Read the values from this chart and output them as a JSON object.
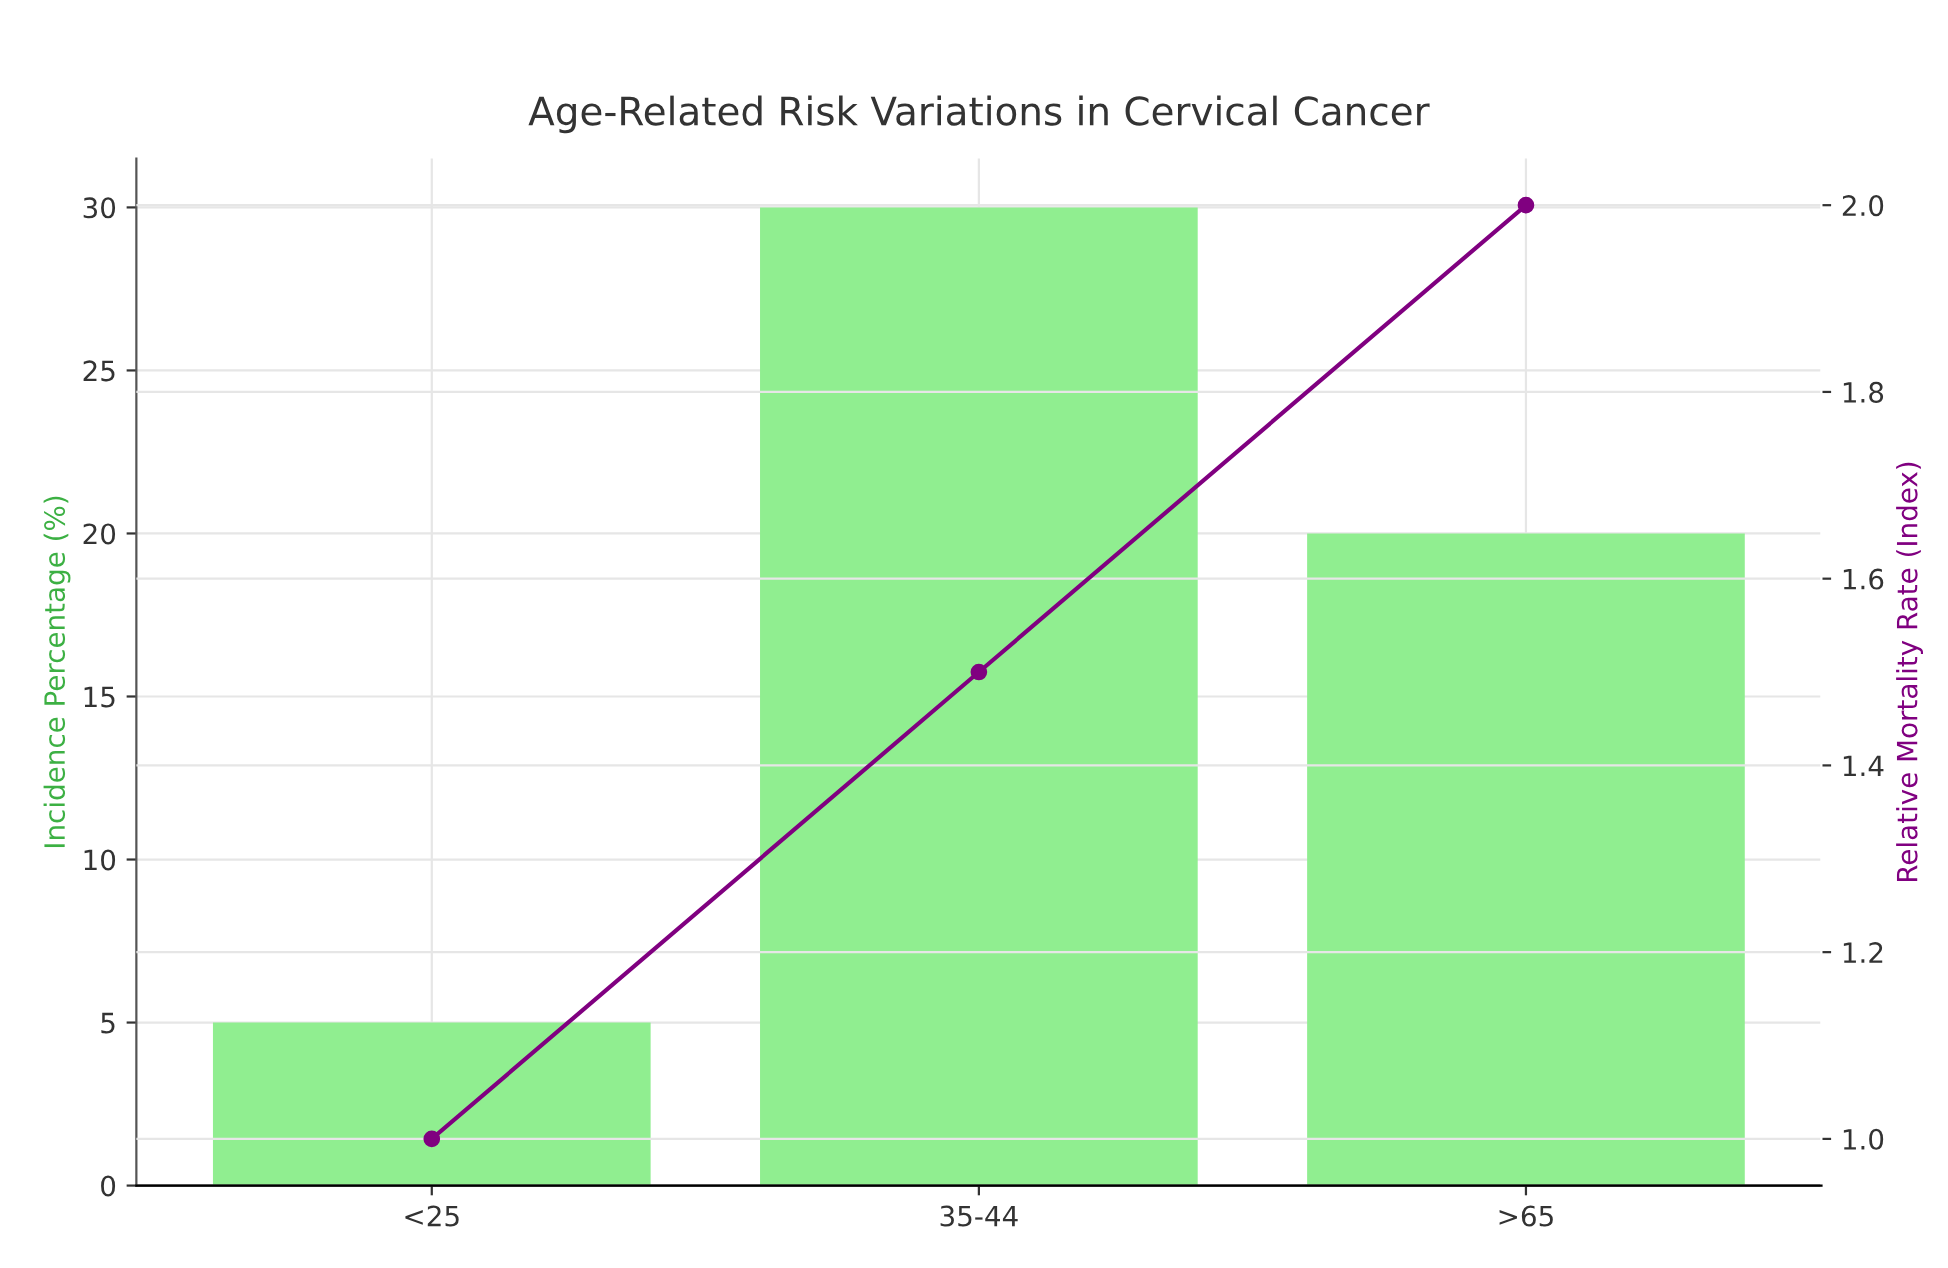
{
  "chart_data": {
    "type": "bar",
    "title": "Age-Related Risk Variations in Cervical Cancer",
    "categories": [
      "<25",
      "35-44",
      ">65"
    ],
    "ylabel": "Incidence Percentage (%)",
    "y2label": "Relative Mortality Rate (Index)",
    "series": [
      {
        "name": null,
        "color": "#90ee90",
        "values": [
          5,
          30,
          20
        ]
      },
      {
        "name": null,
        "type": "line",
        "axis": "y2",
        "color": "#800080",
        "values": [
          1.0,
          1.5,
          2.0
        ],
        "marker": "circle",
        "line_style": "solid"
      }
    ],
    "ylim": [
      0,
      31.5
    ],
    "yticks": [
      0,
      5,
      10,
      15,
      20,
      25,
      30
    ],
    "y2lim": [
      0.95,
      2.05
    ],
    "y2ticks": [
      {
        "value": 1,
        "label": "1.0"
      },
      1.2,
      1.4,
      1.6,
      1.8,
      {
        "value": 2,
        "label": "2.0"
      }
    ],
    "grid": true
  }
}
